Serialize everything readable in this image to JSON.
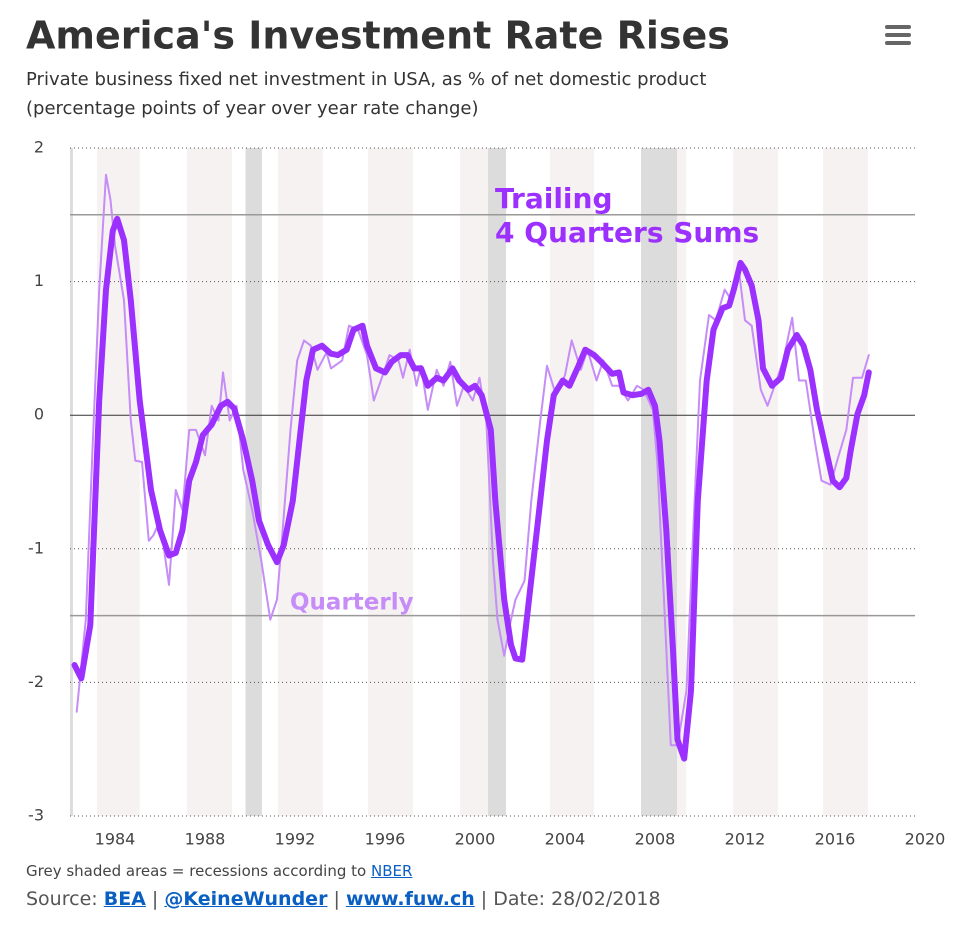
{
  "chart_data": {
    "type": "line",
    "title": "America's Investment Rate Rises",
    "subtitle": [
      "Private business fixed net investment in USA, as % of net domestic product",
      "(percentage points of year over year rate change)"
    ],
    "xlim": [
      1982,
      2020
    ],
    "xticks": [
      1984,
      1988,
      1992,
      1996,
      2000,
      2004,
      2008,
      2012,
      2016,
      2020
    ],
    "ylim": [
      -3,
      2
    ],
    "yticks": [
      2,
      1,
      0,
      -1,
      -2,
      -3
    ],
    "grid": true,
    "plot_lines": [
      1.5,
      -1.5
    ],
    "recessions": [
      [
        1982.0,
        1982.13
      ],
      [
        1989.8,
        1990.53
      ],
      [
        2000.58,
        2001.38
      ],
      [
        2007.38,
        2008.98
      ]
    ],
    "plot_bands": [
      [
        1983.2,
        1985.1
      ],
      [
        1987.2,
        1989.2
      ],
      [
        1991.24,
        1993.24
      ],
      [
        1995.24,
        1997.24
      ],
      [
        1999.33,
        2001.24
      ],
      [
        2003.33,
        2005.29
      ],
      [
        2007.38,
        2009.38
      ],
      [
        2011.47,
        2013.47
      ],
      [
        2015.47,
        2017.47
      ]
    ],
    "annotations": [
      {
        "text": [
          "Trailing",
          "4 Quarters Sums"
        ],
        "color": "#9b30ff"
      },
      {
        "text": [
          "Quarterly"
        ],
        "color": "#c68cf7"
      }
    ],
    "series": [
      {
        "name": "Quarterly",
        "color": "#c68cf7",
        "width": 2,
        "x": [
          1982.3,
          1982.7,
          1983.0,
          1983.3,
          1983.6,
          1983.8,
          1984.0,
          1984.4,
          1984.7,
          1984.9,
          1985.2,
          1985.5,
          1985.7,
          1986.0,
          1986.4,
          1986.7,
          1987.0,
          1987.3,
          1987.6,
          1988.0,
          1988.3,
          1988.6,
          1988.8,
          1989.1,
          1989.4,
          1989.7,
          1990.1,
          1990.5,
          1990.9,
          1991.2,
          1991.4,
          1991.8,
          1992.1,
          1992.4,
          1992.7,
          1993.0,
          1993.4,
          1993.6,
          1994.1,
          1994.4,
          1994.8,
          1995.2,
          1995.5,
          1995.9,
          1996.2,
          1996.6,
          1996.8,
          1997.1,
          1997.4,
          1997.6,
          1997.9,
          1998.3,
          1998.6,
          1998.9,
          1999.2,
          1999.5,
          1999.9,
          2000.2,
          2000.5,
          2000.8,
          2001.0,
          2001.3,
          2001.6,
          2001.8,
          2002.2,
          2002.5,
          2002.9,
          2003.2,
          2003.6,
          2004.0,
          2004.3,
          2004.7,
          2005.0,
          2005.4,
          2005.7,
          2006.1,
          2006.4,
          2006.8,
          2007.2,
          2007.5,
          2007.9,
          2008.1,
          2008.4,
          2008.7,
          2009.0,
          2009.4,
          2009.7,
          2010.0,
          2010.4,
          2010.7,
          2011.1,
          2011.4,
          2011.7,
          2012.0,
          2012.3,
          2012.7,
          2013.0,
          2013.4,
          2013.7,
          2014.1,
          2014.4,
          2014.7,
          2015.1,
          2015.4,
          2015.8,
          2016.1,
          2016.5,
          2016.8,
          2017.2,
          2017.5
        ],
        "values": [
          -2.22,
          -1.53,
          -0.26,
          0.94,
          1.8,
          1.61,
          1.27,
          0.86,
          -0.04,
          -0.34,
          -0.35,
          -0.94,
          -0.9,
          -0.79,
          -1.27,
          -0.56,
          -0.71,
          -0.11,
          -0.11,
          -0.3,
          0.07,
          -0.04,
          0.32,
          -0.04,
          0.07,
          -0.41,
          -0.71,
          -1.09,
          -1.53,
          -1.38,
          -0.97,
          -0.11,
          0.41,
          0.56,
          0.52,
          0.34,
          0.47,
          0.35,
          0.41,
          0.67,
          0.64,
          0.45,
          0.11,
          0.3,
          0.45,
          0.41,
          0.28,
          0.49,
          0.22,
          0.37,
          0.04,
          0.34,
          0.22,
          0.4,
          0.07,
          0.22,
          0.11,
          0.28,
          -0.04,
          -1.09,
          -1.53,
          -1.8,
          -1.53,
          -1.38,
          -1.24,
          -0.64,
          -0.04,
          0.37,
          0.15,
          0.3,
          0.56,
          0.34,
          0.49,
          0.26,
          0.41,
          0.22,
          0.22,
          0.11,
          0.22,
          0.19,
          0.04,
          -0.34,
          -1.38,
          -2.47,
          -2.47,
          -2.06,
          -0.86,
          0.26,
          0.75,
          0.71,
          0.94,
          0.86,
          1.12,
          0.71,
          0.67,
          0.19,
          0.07,
          0.26,
          0.41,
          0.73,
          0.26,
          0.26,
          -0.19,
          -0.49,
          -0.52,
          -0.34,
          -0.11,
          0.28,
          0.28,
          0.45
        ]
      },
      {
        "name": "Trailing 4 Quarters Sums",
        "color": "#9b30ff",
        "width": 6,
        "x": [
          1982.2,
          1982.5,
          1982.9,
          1983.3,
          1983.6,
          1983.9,
          1984.1,
          1984.4,
          1984.7,
          1985.1,
          1985.6,
          1986.0,
          1986.4,
          1986.7,
          1987.0,
          1987.3,
          1987.6,
          1987.9,
          1988.3,
          1988.7,
          1989.0,
          1989.3,
          1989.7,
          1990.1,
          1990.4,
          1990.8,
          1991.2,
          1991.5,
          1991.9,
          1992.2,
          1992.5,
          1992.8,
          1993.2,
          1993.6,
          1993.9,
          1994.3,
          1994.6,
          1995.0,
          1995.2,
          1995.6,
          1996.0,
          1996.3,
          1996.7,
          1997.0,
          1997.3,
          1997.6,
          1997.9,
          1998.3,
          1998.6,
          1999.0,
          1999.3,
          1999.7,
          2000.0,
          2000.3,
          2000.7,
          2000.9,
          2001.3,
          2001.6,
          2001.8,
          2002.1,
          2002.4,
          2002.8,
          2003.2,
          2003.5,
          2003.9,
          2004.2,
          2004.6,
          2004.9,
          2005.3,
          2005.6,
          2006.1,
          2006.4,
          2006.6,
          2007.0,
          2007.4,
          2007.7,
          2008.0,
          2008.2,
          2008.5,
          2008.8,
          2009.0,
          2009.3,
          2009.6,
          2009.9,
          2010.3,
          2010.6,
          2011.0,
          2011.3,
          2011.5,
          2011.8,
          2012.0,
          2012.3,
          2012.6,
          2012.8,
          2013.2,
          2013.6,
          2013.9,
          2014.3,
          2014.6,
          2014.9,
          2015.2,
          2015.6,
          2015.9,
          2016.2,
          2016.5,
          2016.7,
          2017.0,
          2017.3,
          2017.5
        ],
        "values": [
          -1.87,
          -1.97,
          -1.57,
          0.11,
          0.94,
          1.38,
          1.47,
          1.31,
          0.86,
          0.11,
          -0.56,
          -0.86,
          -1.05,
          -1.03,
          -0.86,
          -0.49,
          -0.35,
          -0.15,
          -0.07,
          0.07,
          0.1,
          0.05,
          -0.19,
          -0.49,
          -0.79,
          -0.97,
          -1.1,
          -0.97,
          -0.64,
          -0.19,
          0.26,
          0.49,
          0.52,
          0.46,
          0.45,
          0.49,
          0.64,
          0.67,
          0.52,
          0.35,
          0.32,
          0.4,
          0.45,
          0.45,
          0.35,
          0.35,
          0.22,
          0.28,
          0.26,
          0.35,
          0.26,
          0.19,
          0.22,
          0.15,
          -0.11,
          -0.64,
          -1.38,
          -1.72,
          -1.82,
          -1.83,
          -1.38,
          -0.79,
          -0.19,
          0.15,
          0.26,
          0.22,
          0.37,
          0.49,
          0.45,
          0.4,
          0.31,
          0.32,
          0.17,
          0.15,
          0.16,
          0.19,
          0.07,
          -0.19,
          -0.86,
          -1.76,
          -2.43,
          -2.57,
          -2.06,
          -0.64,
          0.26,
          0.64,
          0.8,
          0.82,
          0.94,
          1.14,
          1.09,
          0.97,
          0.71,
          0.35,
          0.22,
          0.28,
          0.49,
          0.6,
          0.52,
          0.34,
          0.04,
          -0.26,
          -0.49,
          -0.54,
          -0.47,
          -0.26,
          0.01,
          0.15,
          0.32
        ]
      }
    ],
    "footnote": {
      "text": "Grey shaded areas = recessions according to",
      "link": "NBER"
    },
    "source": {
      "label": "Source:",
      "links": [
        "BEA",
        "@KeineWunder",
        "www.fuw.ch"
      ],
      "date": "Date: 28/02/2018"
    }
  }
}
